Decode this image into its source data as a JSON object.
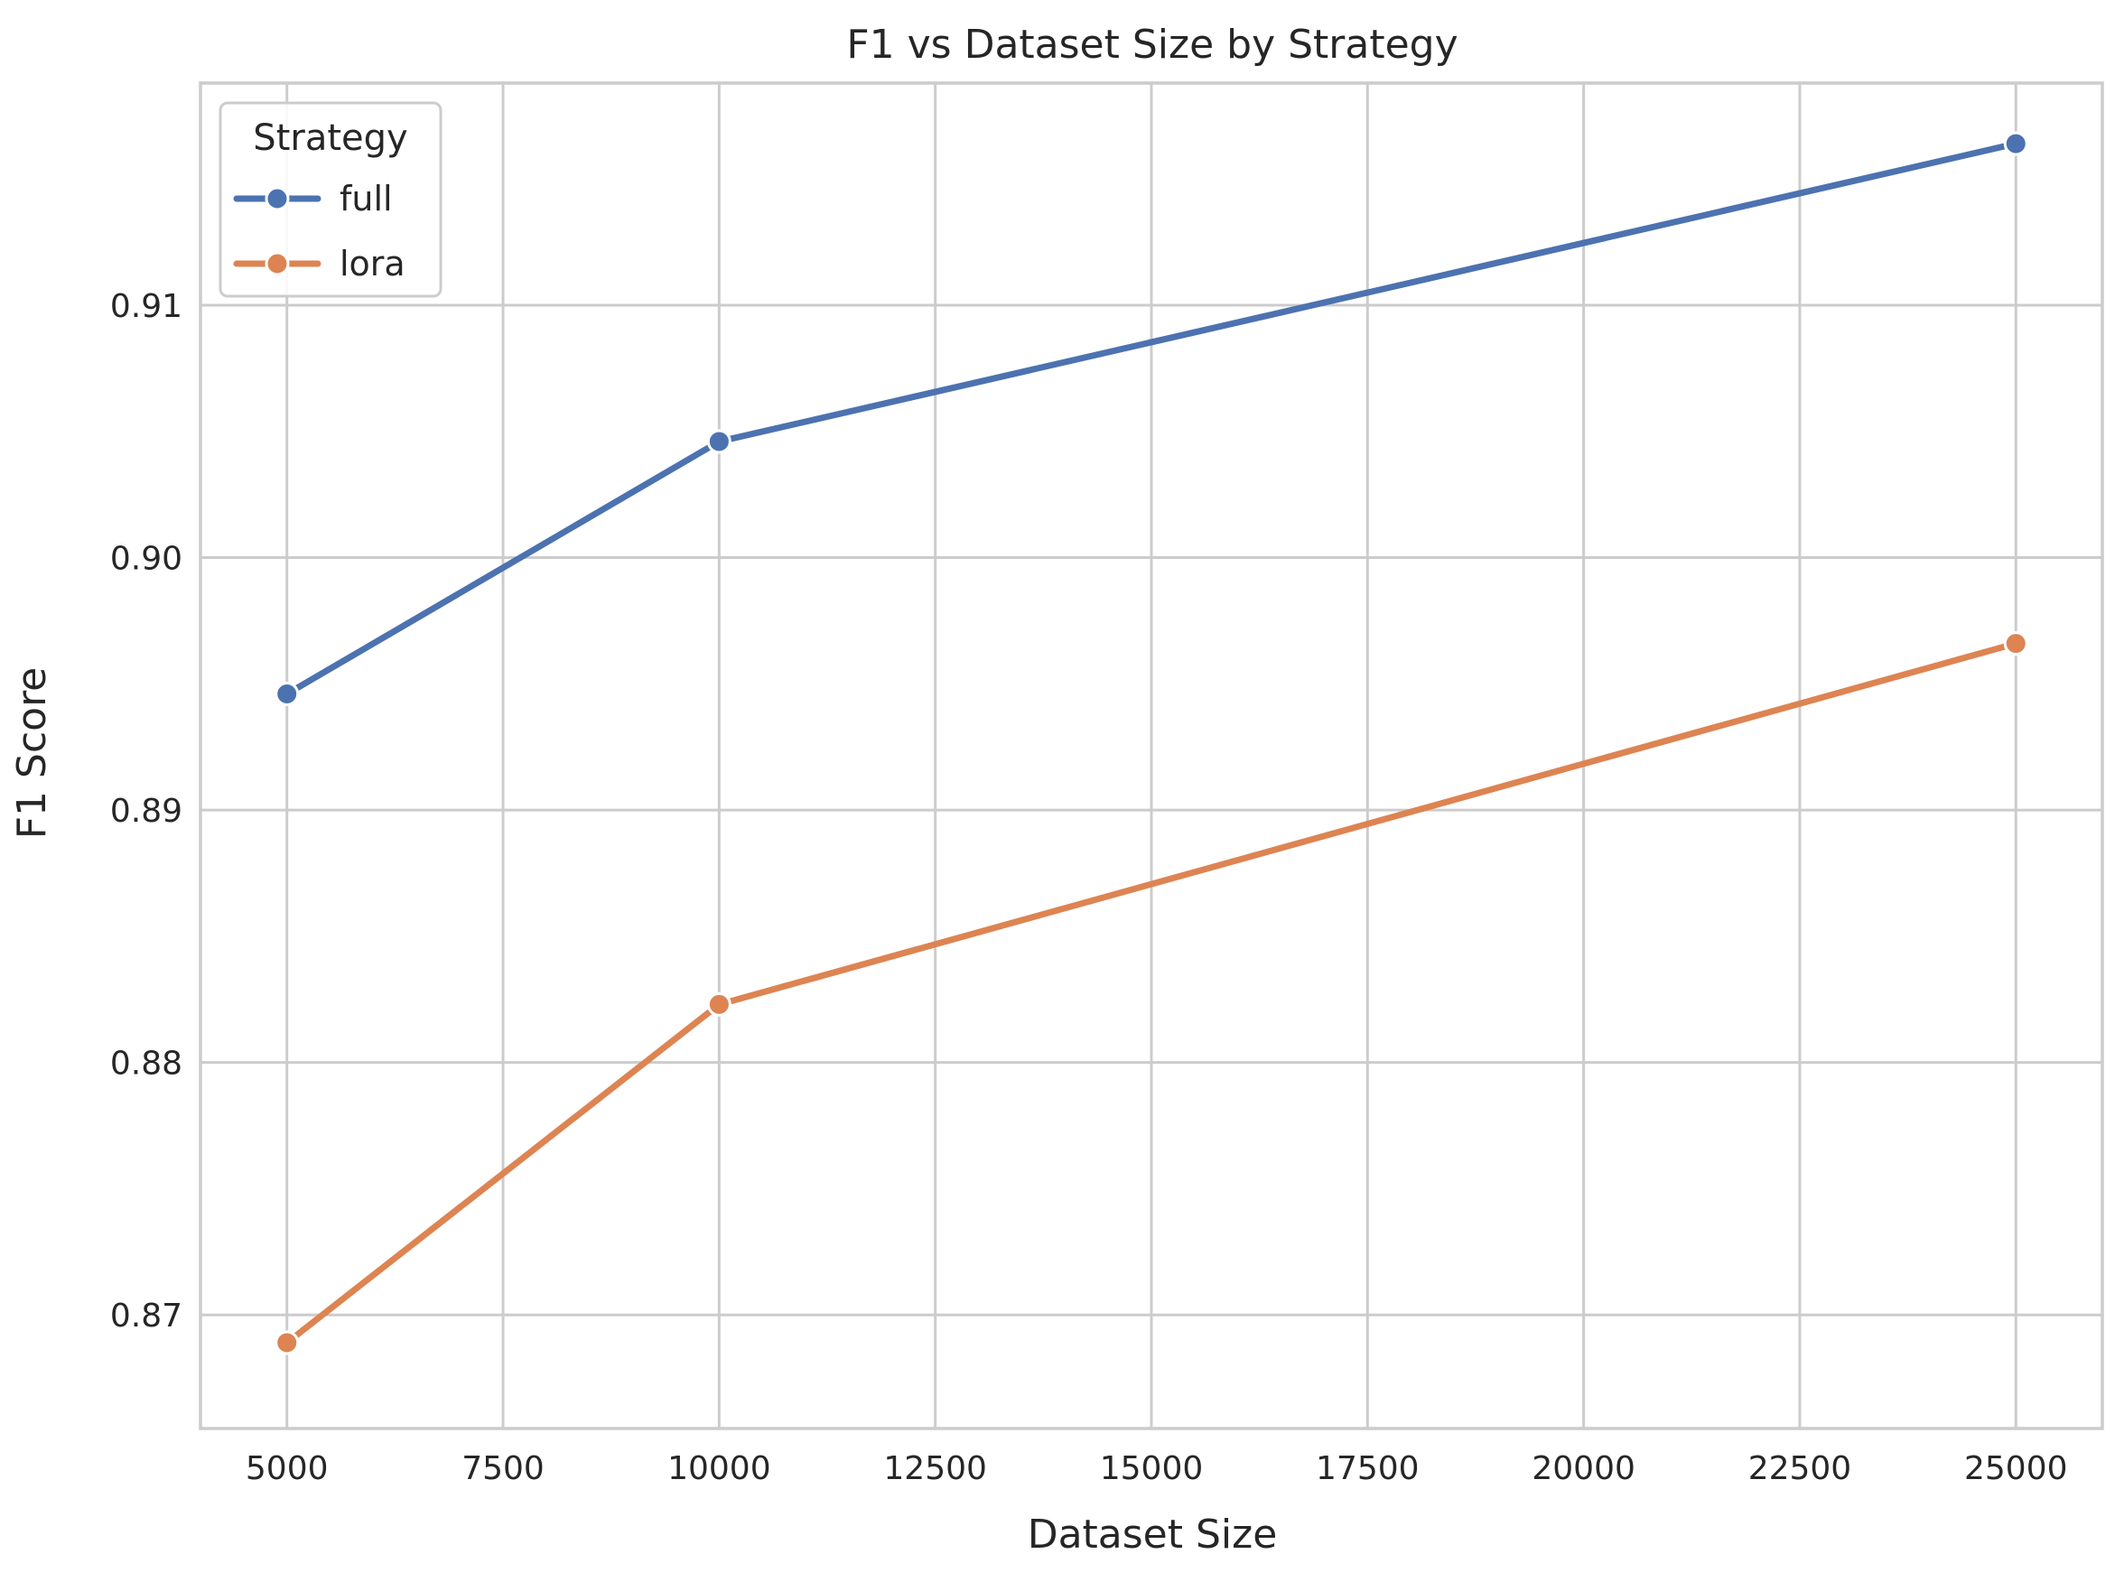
{
  "chart_data": {
    "type": "line",
    "title": "F1 vs Dataset Size by Strategy",
    "xlabel": "Dataset Size",
    "ylabel": "F1 Score",
    "x": [
      5000,
      10000,
      25000
    ],
    "xlim": [
      4000,
      26000
    ],
    "ylim": [
      0.8655,
      0.9188
    ],
    "xticks": [
      5000,
      7500,
      10000,
      12500,
      15000,
      17500,
      20000,
      22500,
      25000
    ],
    "yticks": [
      0.87,
      0.88,
      0.89,
      0.9,
      0.91
    ],
    "ytick_labels": [
      "0.87",
      "0.88",
      "0.89",
      "0.90",
      "0.91"
    ],
    "grid": true,
    "legend": {
      "title": "Strategy",
      "placement": "top-left"
    },
    "series": [
      {
        "name": "full",
        "color": "#4c72b0",
        "values": [
          0.8946,
          0.9046,
          0.9164
        ]
      },
      {
        "name": "lora",
        "color": "#dd8452",
        "values": [
          0.8689,
          0.8823,
          0.8966
        ]
      }
    ]
  }
}
